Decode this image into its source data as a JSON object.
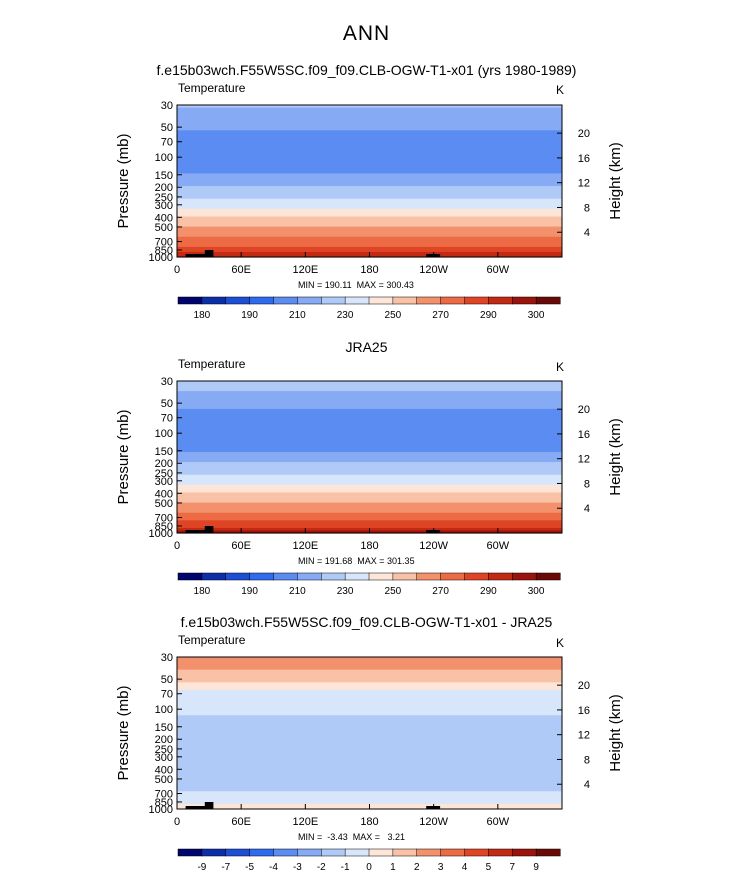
{
  "main_title": "ANN",
  "colors": {
    "temp_palette": [
      "#00046e",
      "#0c2ea8",
      "#1d4fd6",
      "#2f6bef",
      "#5a8cf2",
      "#86abf4",
      "#b0caf7",
      "#d8e6fb",
      "#fde5d8",
      "#f9c1a6",
      "#f3916c",
      "#ec6a44",
      "#df4524",
      "#c22a14",
      "#9a140b",
      "#6a0a06"
    ],
    "diff_palette": [
      "#00046e",
      "#0c2ea8",
      "#1d4fd6",
      "#2f6bef",
      "#5a8cf2",
      "#86abf4",
      "#b0caf7",
      "#d8e6fb",
      "#fde5d8",
      "#f9c1a6",
      "#f3916c",
      "#ec6a44",
      "#df4524",
      "#c22a14",
      "#9a140b",
      "#6a0a06"
    ]
  },
  "chart_data": [
    {
      "type": "heatmap",
      "title": "f.e15b03wch.F55W5SC.f09_f09.CLB-OGW-T1-x01 (yrs 1980-1989)",
      "variable": "Temperature",
      "units": "K",
      "ylabel": "Pressure  (mb)",
      "y2label": "Height  (km)",
      "xticks": [
        "0",
        "60E",
        "120E",
        "180",
        "120W",
        "60W"
      ],
      "xtick_lons": [
        0,
        60,
        120,
        180,
        240,
        300
      ],
      "xlim": [
        0,
        360
      ],
      "yticks": [
        "30",
        "50",
        "70",
        "100",
        "150",
        "200",
        "250",
        "300",
        "400",
        "500",
        "700",
        "850",
        "1000"
      ],
      "ytick_p": [
        30,
        50,
        70,
        100,
        150,
        200,
        250,
        300,
        400,
        500,
        700,
        850,
        1000
      ],
      "ylim": [
        30,
        1000
      ],
      "height_ticks": [
        "20",
        "16",
        "12",
        "8",
        "4"
      ],
      "height_km": [
        20,
        16,
        12,
        8,
        4
      ],
      "minmax_text": "MIN = 190.11  MAX = 300.43",
      "min": 190.11,
      "max": 300.43,
      "profile": [
        [
          30,
          221
        ],
        [
          40,
          215
        ],
        [
          50,
          211
        ],
        [
          60,
          207
        ],
        [
          70,
          202
        ],
        [
          100,
          201
        ],
        [
          130,
          206
        ],
        [
          150,
          211
        ],
        [
          175,
          216
        ],
        [
          200,
          220
        ],
        [
          250,
          228
        ],
        [
          300,
          236
        ],
        [
          400,
          250
        ],
        [
          500,
          260
        ],
        [
          600,
          268
        ],
        [
          700,
          275
        ],
        [
          800,
          281
        ],
        [
          850,
          286
        ],
        [
          925,
          292
        ],
        [
          1000,
          296
        ]
      ],
      "colorbar_labels": [
        "180",
        "190",
        "210",
        "230",
        "250",
        "270",
        "290",
        "300"
      ],
      "colorbar_levels": [
        180,
        185,
        190,
        200,
        210,
        220,
        230,
        240,
        250,
        260,
        270,
        280,
        290,
        295,
        300
      ]
    },
    {
      "type": "heatmap",
      "title": "JRA25",
      "variable": "Temperature",
      "units": "K",
      "ylabel": "Pressure  (mb)",
      "y2label": "Height  (km)",
      "xticks": [
        "0",
        "60E",
        "120E",
        "180",
        "120W",
        "60W"
      ],
      "xtick_lons": [
        0,
        60,
        120,
        180,
        240,
        300
      ],
      "xlim": [
        0,
        360
      ],
      "yticks": [
        "30",
        "50",
        "70",
        "100",
        "150",
        "200",
        "250",
        "300",
        "400",
        "500",
        "700",
        "850",
        "1000"
      ],
      "ytick_p": [
        30,
        50,
        70,
        100,
        150,
        200,
        250,
        300,
        400,
        500,
        700,
        850,
        1000
      ],
      "ylim": [
        30,
        1000
      ],
      "height_ticks": [
        "20",
        "16",
        "12",
        "8",
        "4"
      ],
      "height_km": [
        20,
        16,
        12,
        8,
        4
      ],
      "minmax_text": "MIN = 191.68  MAX = 301.35",
      "min": 191.68,
      "max": 301.35,
      "profile": [
        [
          30,
          226
        ],
        [
          40,
          219
        ],
        [
          50,
          213
        ],
        [
          60,
          208
        ],
        [
          70,
          202
        ],
        [
          100,
          201
        ],
        [
          130,
          205
        ],
        [
          150,
          210
        ],
        [
          175,
          216
        ],
        [
          200,
          220
        ],
        [
          250,
          228
        ],
        [
          300,
          236
        ],
        [
          400,
          250
        ],
        [
          500,
          261
        ],
        [
          600,
          269
        ],
        [
          700,
          276
        ],
        [
          800,
          282
        ],
        [
          850,
          287
        ],
        [
          925,
          293
        ],
        [
          1000,
          297
        ]
      ],
      "colorbar_labels": [
        "180",
        "190",
        "210",
        "230",
        "250",
        "270",
        "290",
        "300"
      ],
      "colorbar_levels": [
        180,
        185,
        190,
        200,
        210,
        220,
        230,
        240,
        250,
        260,
        270,
        280,
        290,
        295,
        300
      ]
    },
    {
      "type": "heatmap",
      "title": "f.e15b03wch.F55W5SC.f09_f09.CLB-OGW-T1-x01 - JRA25",
      "variable": "Temperature",
      "units": "K",
      "ylabel": "Pressure  (mb)",
      "y2label": "Height  (km)",
      "xticks": [
        "0",
        "60E",
        "120E",
        "180",
        "120W",
        "60W"
      ],
      "xtick_lons": [
        0,
        60,
        120,
        180,
        240,
        300
      ],
      "xlim": [
        0,
        360
      ],
      "yticks": [
        "30",
        "50",
        "70",
        "100",
        "150",
        "200",
        "250",
        "300",
        "400",
        "500",
        "700",
        "850",
        "1000"
      ],
      "ytick_p": [
        30,
        50,
        70,
        100,
        150,
        200,
        250,
        300,
        400,
        500,
        700,
        850,
        1000
      ],
      "ylim": [
        30,
        1000
      ],
      "height_ticks": [
        "20",
        "16",
        "12",
        "8",
        "4"
      ],
      "height_km": [
        20,
        16,
        12,
        8,
        4
      ],
      "minmax_text": "MIN =  -3.43  MAX =   3.21",
      "min": -3.43,
      "max": 3.21,
      "profile": [
        [
          30,
          2.6
        ],
        [
          40,
          2.1
        ],
        [
          50,
          1.3
        ],
        [
          60,
          0.6
        ],
        [
          70,
          -0.5
        ],
        [
          100,
          -0.8
        ],
        [
          150,
          -1.4
        ],
        [
          200,
          -1.5
        ],
        [
          250,
          -1.6
        ],
        [
          300,
          -1.6
        ],
        [
          400,
          -1.4
        ],
        [
          500,
          -1.3
        ],
        [
          600,
          -1.1
        ],
        [
          700,
          -0.9
        ],
        [
          800,
          -0.8
        ],
        [
          850,
          -0.5
        ],
        [
          925,
          0.2
        ],
        [
          1000,
          0.5
        ]
      ],
      "colorbar_labels": [
        "-9",
        "-7",
        "-5",
        "-4",
        "-3",
        "-2",
        "-1",
        "0",
        "1",
        "2",
        "3",
        "4",
        "5",
        "7",
        "9"
      ],
      "colorbar_levels": [
        -9,
        -7,
        -5,
        -4,
        -3,
        -2,
        -1,
        0,
        1,
        2,
        3,
        4,
        5,
        7,
        9
      ]
    }
  ]
}
